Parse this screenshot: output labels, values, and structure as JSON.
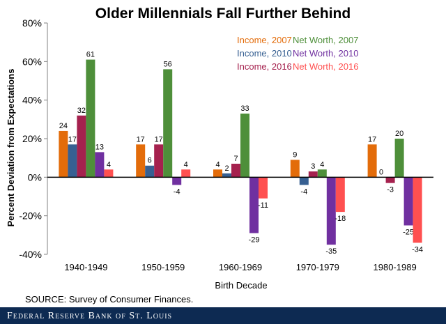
{
  "chart_data": {
    "type": "bar",
    "title": "Older Millennials Fall Further Behind",
    "xlabel": "Birth Decade",
    "ylabel": "Percent Deviation  from Expectations",
    "ylim": [
      -40,
      80
    ],
    "yticks": [
      "-40%",
      "-20%",
      "0%",
      "20%",
      "40%",
      "60%",
      "80%"
    ],
    "ytick_values": [
      -40,
      -20,
      0,
      20,
      40,
      60,
      80
    ],
    "grid": false,
    "legend_position": "top-right",
    "categories": [
      "1940-1949",
      "1950-1959",
      "1960-1969",
      "1970-1979",
      "1980-1989"
    ],
    "series": [
      {
        "name": "Income, 2007",
        "color": "#e36c0a",
        "values": [
          24,
          17,
          4,
          9,
          17
        ],
        "labels": [
          "24",
          "17",
          "4",
          "9",
          "17"
        ]
      },
      {
        "name": "Income, 2010",
        "color": "#376092",
        "values": [
          17,
          6,
          2,
          -4,
          0
        ],
        "labels": [
          "17",
          "6",
          "2",
          "-4",
          "0"
        ]
      },
      {
        "name": "Income, 2016",
        "color": "#a5214e",
        "values": [
          32,
          17,
          7,
          3,
          -3
        ],
        "labels": [
          "32",
          "17",
          "7",
          "3",
          "-3"
        ]
      },
      {
        "name": "Net Worth, 2007",
        "color": "#4e8f3a",
        "values": [
          61,
          56,
          33,
          4,
          20
        ],
        "labels": [
          "61",
          "56",
          "33",
          "4",
          "20"
        ]
      },
      {
        "name": "Net Worth, 2010",
        "color": "#7030a0",
        "values": [
          13,
          -4,
          -29,
          -35,
          -25
        ],
        "labels": [
          "13",
          "-4",
          "-29",
          "-35",
          "-25"
        ]
      },
      {
        "name": "Net Worth, 2016",
        "color": "#ff5050",
        "values": [
          4,
          4,
          -11,
          -18,
          -34
        ],
        "labels": [
          "4",
          "4",
          "-11",
          "-18",
          "-34"
        ]
      }
    ]
  },
  "source_text": "SOURCE: Survey of Consumer Finances.",
  "footer_text": "Federal Reserve Bank of St. Louis"
}
